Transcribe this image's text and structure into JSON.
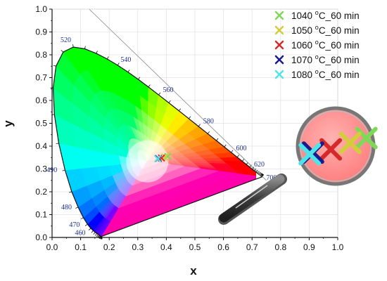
{
  "chart_data": {
    "type": "scatter",
    "title": "",
    "xlabel": "x",
    "ylabel": "y",
    "xlim": [
      0.0,
      1.0
    ],
    "ylim": [
      0.0,
      1.0
    ],
    "x_ticks": [
      "0.0",
      "0.1",
      "0.2",
      "0.3",
      "0.4",
      "0.5",
      "0.6",
      "0.7",
      "0.8",
      "0.9",
      "1.0"
    ],
    "y_ticks": [
      "0.0",
      "0.1",
      "0.2",
      "0.3",
      "0.4",
      "0.5",
      "0.6",
      "0.7",
      "0.8",
      "0.9",
      "1.0"
    ],
    "background": "CIE 1931 chromaticity diagram",
    "wavelength_labels": [
      {
        "label": "460",
        "x": 0.144,
        "y": 0.03
      },
      {
        "label": "470",
        "x": 0.124,
        "y": 0.058
      },
      {
        "label": "480",
        "x": 0.091,
        "y": 0.133
      },
      {
        "label": "490",
        "x": 0.045,
        "y": 0.295
      },
      {
        "label": "520",
        "x": 0.074,
        "y": 0.834
      },
      {
        "label": "540",
        "x": 0.23,
        "y": 0.754
      },
      {
        "label": "560",
        "x": 0.373,
        "y": 0.624
      },
      {
        "label": "580",
        "x": 0.512,
        "y": 0.487
      },
      {
        "label": "600",
        "x": 0.627,
        "y": 0.373
      },
      {
        "label": "620",
        "x": 0.692,
        "y": 0.308
      },
      {
        "label": "700",
        "x": 0.735,
        "y": 0.265
      }
    ],
    "series": [
      {
        "name": "1040 °C_60 min",
        "color": "#7ed957",
        "points": [
          {
            "x": 0.405,
            "y": 0.355
          }
        ]
      },
      {
        "name": "1050 °C_60 min",
        "color": "#d4cc3a",
        "points": [
          {
            "x": 0.395,
            "y": 0.352
          }
        ]
      },
      {
        "name": "1060 °C_60 min",
        "color": "#d62a2a",
        "points": [
          {
            "x": 0.383,
            "y": 0.348
          }
        ]
      },
      {
        "name": "1070 °C_60 min",
        "color": "#1a1a8c",
        "points": [
          {
            "x": 0.372,
            "y": 0.346
          }
        ]
      },
      {
        "name": "1080 °C_60 min",
        "color": "#4fe3ea",
        "points": [
          {
            "x": 0.37,
            "y": 0.345
          }
        ]
      }
    ],
    "grid": true,
    "legend_position": "top-right"
  }
}
